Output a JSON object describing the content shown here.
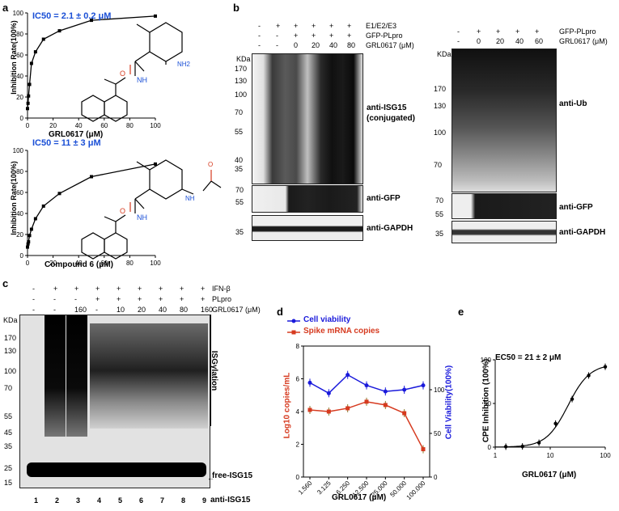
{
  "panels": {
    "a": "a",
    "b": "b",
    "c": "c",
    "d": "d",
    "e": "e"
  },
  "a1": {
    "ic50": "IC50 = 2.1 ± 0.2 μM",
    "ylabel": "Inhibition Rate(100%)",
    "xlabel": "GRL0617 (μM)",
    "nh2": "NH2",
    "nh": "NH",
    "o": "O"
  },
  "a2": {
    "ic50": "IC50 = 11 ± 3 μM",
    "ylabel": "Inhibition Rate(100%)",
    "xlabel": "Compound 6 (μM)",
    "nh": "NH",
    "o": "O"
  },
  "b1": {
    "row_labels": [
      "E1/E2/E3",
      "GFP-PLpro",
      "GRL0617 (μM)"
    ],
    "row1": [
      "-",
      "+",
      "+",
      "+",
      "+",
      "+"
    ],
    "row2": [
      "-",
      "-",
      "+",
      "+",
      "+",
      "+"
    ],
    "row3": [
      "-",
      "-",
      "0",
      "20",
      "40",
      "80"
    ],
    "kda": "KDa",
    "markers": [
      "170",
      "130",
      "100",
      "70",
      "55",
      "40",
      "35"
    ],
    "gfp_markers": [
      "70",
      "55"
    ],
    "gapdh_marker": "35",
    "label_isg": "anti-ISG15",
    "label_conj": "(conjugated)",
    "label_gfp": "anti-GFP",
    "label_gapdh": "anti-GAPDH"
  },
  "b2": {
    "row_label": "GFP-PLpro",
    "row_label2": "GRL0617 (μM)",
    "row1": [
      "-",
      "+",
      "+",
      "+",
      "+"
    ],
    "row2": [
      "-",
      "0",
      "20",
      "40",
      "60"
    ],
    "kda": "KDa",
    "markers": [
      "170",
      "130",
      "100",
      "70"
    ],
    "gfp_markers": [
      "70",
      "55"
    ],
    "gapdh_marker": "35",
    "label_ub": "anti-Ub",
    "label_gfp": "anti-GFP",
    "label_gapdh": "anti-GAPDH"
  },
  "c": {
    "row_labels": [
      "IFN-β",
      "PLpro",
      "GRL0617 (μM)"
    ],
    "row1": [
      "-",
      "+",
      "+",
      "+",
      "+",
      "+",
      "+",
      "+",
      "+"
    ],
    "row2": [
      "-",
      "-",
      "-",
      "+",
      "+",
      "+",
      "+",
      "+",
      "+"
    ],
    "row3": [
      "-",
      "-",
      "160",
      "-",
      "10",
      "20",
      "40",
      "80",
      "160"
    ],
    "kda": "KDa",
    "markers": [
      "170",
      "130",
      "100",
      "70",
      "55",
      "45",
      "35",
      "25",
      "15"
    ],
    "lanes": [
      "1",
      "2",
      "3",
      "4",
      "5",
      "6",
      "7",
      "8",
      "9"
    ],
    "isgylation": "ISGylation",
    "free": "free-ISG15",
    "antibody": "anti-ISG15"
  },
  "chart_data": [
    {
      "type": "line",
      "title": "IC50 = 2.1 ± 0.2 μM",
      "xlabel": "GRL0617 (μM)",
      "ylabel": "Inhibition Rate(100%)",
      "x": [
        0,
        0.4,
        0.8,
        1.6,
        3.1,
        6.25,
        12.5,
        25,
        50,
        100
      ],
      "y": [
        9,
        14,
        21,
        32,
        52,
        63,
        75,
        83,
        93,
        97
      ],
      "xlim": [
        0,
        100
      ],
      "ylim": [
        0,
        100
      ],
      "xticks": [
        0,
        20,
        40,
        60,
        80,
        100
      ],
      "yticks": [
        0,
        20,
        40,
        60,
        80,
        100
      ]
    },
    {
      "type": "line",
      "title": "IC50 = 11 ± 3 μM",
      "xlabel": "Compound 6 (μM)",
      "ylabel": "Inhibition Rate(100%)",
      "x": [
        0,
        0.4,
        0.8,
        1.6,
        3.1,
        6.25,
        12.5,
        25,
        50,
        100
      ],
      "y": [
        8,
        11,
        13,
        19,
        25,
        35,
        47,
        59,
        75,
        87
      ],
      "xlim": [
        0,
        100
      ],
      "ylim": [
        0,
        100
      ],
      "xticks": [
        0,
        20,
        40,
        60,
        80,
        100
      ],
      "yticks": [
        0,
        20,
        40,
        60,
        80,
        100
      ]
    },
    {
      "type": "line",
      "xlabel": "GRL0617 (μM)",
      "ylabel": "Log10 copies/mL",
      "y2label": "Cell Viability(100%)",
      "categories": [
        "1.560",
        "3.125",
        "6.250",
        "12.500",
        "25.000",
        "50.000",
        "100.000"
      ],
      "ylim": [
        0,
        8
      ],
      "yticks": [
        0,
        2,
        4,
        6,
        8
      ],
      "y2lim": [
        0,
        150
      ],
      "y2ticks": [
        0,
        50,
        100
      ],
      "legend": "top",
      "series": [
        {
          "name": "Cell viability",
          "axis": "right",
          "color": "#1a1adb",
          "values": [
            108,
            96,
            117,
            105,
            98,
            100,
            105
          ]
        },
        {
          "name": "Spike mRNA copies",
          "axis": "left",
          "color": "#d63a1f",
          "values": [
            4.1,
            4.0,
            4.2,
            4.6,
            4.4,
            3.9,
            1.7
          ]
        }
      ]
    },
    {
      "type": "scatter",
      "xlabel": "GRL0617 (μM)",
      "ylabel": "CPE Inhibition (100%)",
      "annotation": "EC50 = 21 ± 2 μM",
      "xscale": "log",
      "xlim": [
        1,
        100
      ],
      "ylim": [
        0,
        100
      ],
      "xticks": [
        1,
        10,
        100
      ],
      "yticks": [
        0,
        50,
        100
      ],
      "x": [
        1.56,
        3.125,
        6.25,
        12.5,
        25,
        50,
        100
      ],
      "y": [
        0.5,
        0.8,
        5,
        27,
        55,
        82,
        92
      ]
    }
  ],
  "colors": {
    "blue": "#1a4fd6",
    "red": "#d63a1f",
    "ivblue": "#1a1adb"
  }
}
